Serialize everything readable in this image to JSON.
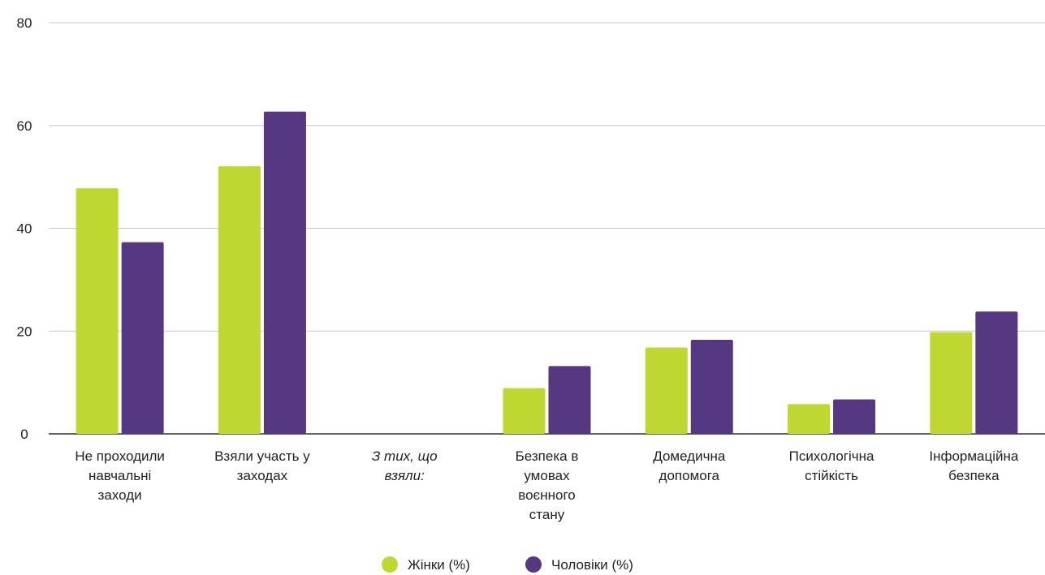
{
  "chart_data": {
    "type": "bar",
    "categories": [
      {
        "lines": [
          "Не проходили",
          "навчальні",
          "заходи"
        ],
        "italic": false
      },
      {
        "lines": [
          "Взяли участь у",
          "заходах"
        ],
        "italic": false
      },
      {
        "lines": [
          "З тих, що",
          "взяли:"
        ],
        "italic": true
      },
      {
        "lines": [
          "Безпека в",
          "умовах",
          "воєнного",
          "стану"
        ],
        "italic": false
      },
      {
        "lines": [
          "Домедична",
          "допомога"
        ],
        "italic": false
      },
      {
        "lines": [
          "Психологічна",
          "стійкість"
        ],
        "italic": false
      },
      {
        "lines": [
          "Інформаційна",
          "безпека"
        ],
        "italic": false
      }
    ],
    "series": [
      {
        "name": "Жінки (%)",
        "color": "#bfd730",
        "values": [
          47.8,
          52.1,
          null,
          8.9,
          16.8,
          5.8,
          19.8
        ]
      },
      {
        "name": "Чоловіки (%)",
        "color": "#55387f",
        "values": [
          37.3,
          62.7,
          null,
          13.2,
          18.3,
          6.7,
          23.8
        ]
      }
    ],
    "ylim": [
      0,
      80
    ],
    "yticks": [
      0,
      20,
      40,
      60,
      80
    ],
    "grid": true,
    "legend_position": "bottom-center",
    "title": "",
    "xlabel": "",
    "ylabel": ""
  }
}
